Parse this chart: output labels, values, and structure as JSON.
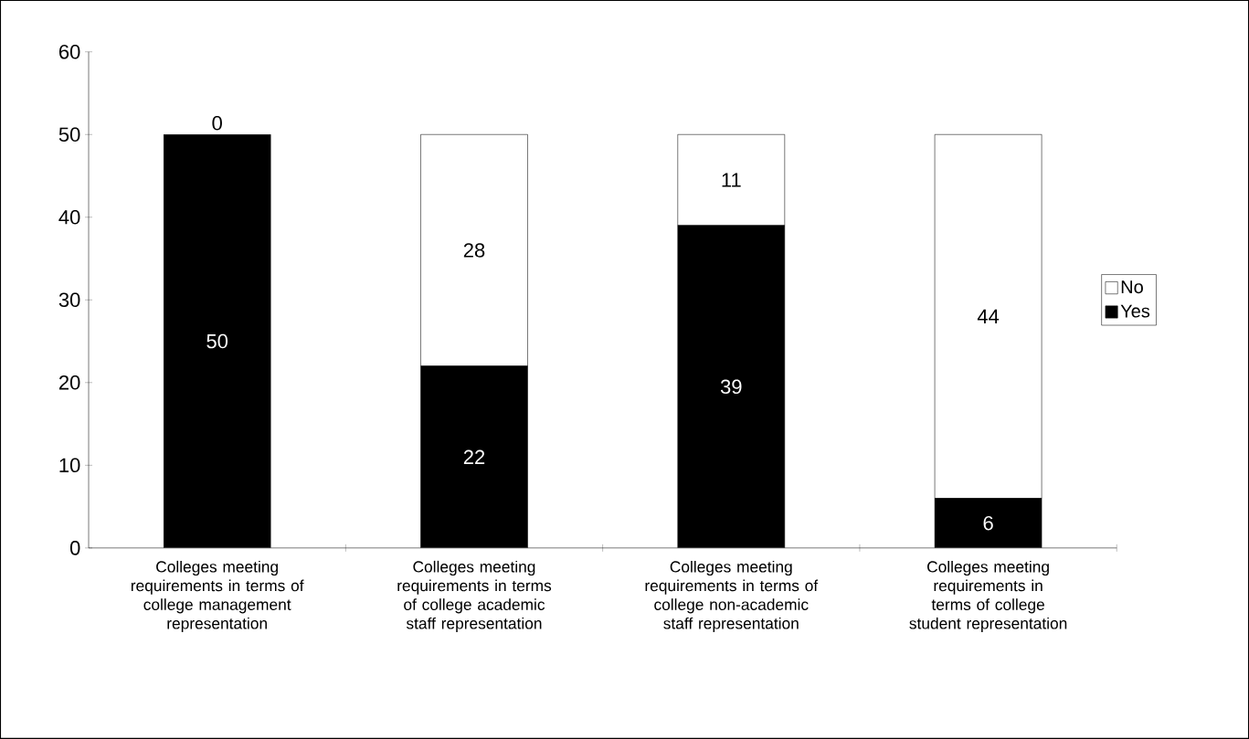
{
  "chart_data": {
    "type": "bar",
    "stacked": true,
    "categories": [
      "Colleges meeting requirements in terms of college management representation",
      "Colleges meeting requirements in terms of college academic staff representation",
      "Colleges meeting requirements in terms of college non-academic staff representation",
      "Colleges meeting requirements in terms of college student representation"
    ],
    "series": [
      {
        "name": "Yes",
        "color": "#000000",
        "values": [
          50,
          22,
          39,
          6
        ]
      },
      {
        "name": "No",
        "color": "#ffffff",
        "values": [
          0,
          28,
          11,
          44
        ]
      }
    ],
    "ylim": [
      0,
      60
    ],
    "yticks": [
      0,
      10,
      20,
      30,
      40,
      50,
      60
    ],
    "data_labels": true,
    "legend": "right",
    "grid": false
  }
}
